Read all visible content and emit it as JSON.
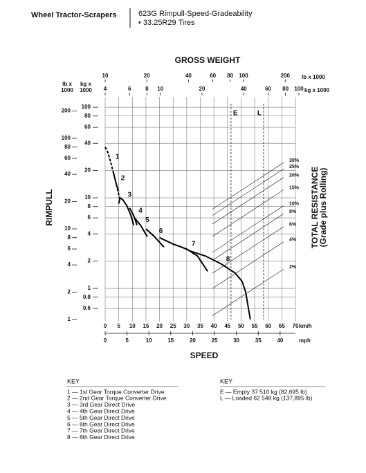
{
  "header": {
    "left": "Wheel Tractor-Scrapers",
    "title": "623G Rimpull-Speed-Gradeability",
    "note": "• 33.25R29 Tires"
  },
  "chart_data": {
    "type": "line",
    "title": "GROSS WEIGHT",
    "x_label": "SPEED",
    "y_label": "RIMPULL",
    "y2_label": [
      "TOTAL RESISTANCE",
      "(Grade plus Rolling)"
    ],
    "xlim": [
      0,
      70
    ],
    "xticks": [
      0,
      5,
      10,
      15,
      20,
      25,
      30,
      35,
      40,
      45,
      50,
      55,
      60,
      65,
      70
    ],
    "x_unit": "km/h",
    "x2lim": [
      0,
      43.5
    ],
    "x2ticks": [
      0,
      5,
      10,
      15,
      20,
      25,
      30,
      35,
      40
    ],
    "x2_unit": "mph",
    "ylim": [
      1,
      287
    ],
    "yticks": [
      1,
      2,
      4,
      6,
      8,
      10,
      20,
      40,
      60,
      80,
      100,
      200
    ],
    "y_unit": [
      "lb x",
      "1000"
    ],
    "y2lim": [
      0.4536,
      130.3
    ],
    "y2ticks": [
      0.6,
      0.8,
      1,
      2,
      4,
      6,
      8,
      10,
      20,
      40,
      60,
      80,
      100
    ],
    "y2_unit": [
      "kg x",
      "1000"
    ],
    "log_scale": true,
    "grid": true,
    "color": "#000000",
    "top_axes": [
      {
        "unit": "lb x 1000",
        "lim": [
          10,
          251
        ],
        "ticks": [
          10,
          20,
          40,
          60,
          80,
          100,
          200
        ]
      },
      {
        "unit": "kg x 1000",
        "lim": [
          4,
          100
        ],
        "ticks": [
          4,
          6,
          8,
          10,
          20,
          40,
          60,
          80,
          100
        ]
      }
    ],
    "series": [
      {
        "name": "1",
        "dashed": true,
        "x": [
          0,
          1,
          2,
          3,
          4,
          5
        ],
        "values": [
          80,
          70,
          55,
          42,
          32,
          26
        ]
      },
      {
        "name": "2",
        "dashed": true,
        "x": [
          3,
          4,
          5,
          5.5
        ],
        "values": [
          42,
          32,
          24,
          21
        ]
      },
      {
        "name": "3",
        "dashed": false,
        "x": [
          5,
          5.5,
          6.5,
          8,
          9.5,
          10.5
        ],
        "values": [
          19,
          22,
          21,
          18,
          14,
          11
        ]
      },
      {
        "name": "4",
        "dashed": false,
        "x": [
          9,
          10.5,
          11.7
        ],
        "values": [
          17,
          14,
          11
        ]
      },
      {
        "name": "5",
        "dashed": false,
        "x": [
          11,
          13,
          15.5
        ],
        "values": [
          13,
          11,
          8.2
        ]
      },
      {
        "name": "6",
        "dashed": false,
        "x": [
          15,
          18,
          21.6
        ],
        "values": [
          10,
          8.3,
          6.3
        ]
      },
      {
        "name": "7",
        "dashed": false,
        "x": [
          20,
          25,
          30,
          34,
          37.7
        ],
        "values": [
          8,
          6.8,
          6,
          5,
          3.4
        ]
      },
      {
        "name": "8",
        "dashed": false,
        "x": [
          27,
          32,
          37,
          42.7,
          47.8,
          50.4,
          51.7,
          53.4
        ],
        "values": [
          6.5,
          5.6,
          5,
          4.1,
          3.25,
          2.63,
          2,
          1
        ]
      }
    ],
    "markers": [
      {
        "name": "E",
        "x": 46.3
      },
      {
        "name": "L",
        "x": 58.3
      }
    ],
    "grade_lines": [
      {
        "label": "30%",
        "value": 54
      },
      {
        "label": "25%",
        "value": 46
      },
      {
        "label": "20%",
        "value": 37
      },
      {
        "label": "15%",
        "value": 27
      },
      {
        "label": "10%",
        "value": 18
      },
      {
        "label": "8%",
        "value": 14.7
      },
      {
        "label": "6%",
        "value": 10.6
      },
      {
        "label": "4%",
        "value": 7.2
      },
      {
        "label": "2%",
        "value": 3.6
      }
    ]
  },
  "key": {
    "left": {
      "title": "KEY",
      "items": [
        "1 — 1st Gear Torque Converter Drive",
        "2 — 2nd Gear Torque Converter Drive",
        "3 — 3rd Gear Direct Drive",
        "4 — 4th Gear Direct Drive",
        "5 — 5th Gear Direct Drive",
        "6 — 6th Gear Direct Drive",
        "7 — 7th Gear Direct Drive",
        "8 — 8th Gear Direct Drive"
      ]
    },
    "right": {
      "title": "KEY",
      "items": [
        "E — Empty 37 510 kg (82,695 lb)",
        "L — Loaded 62 548 kg (137,895 lb)"
      ]
    }
  }
}
